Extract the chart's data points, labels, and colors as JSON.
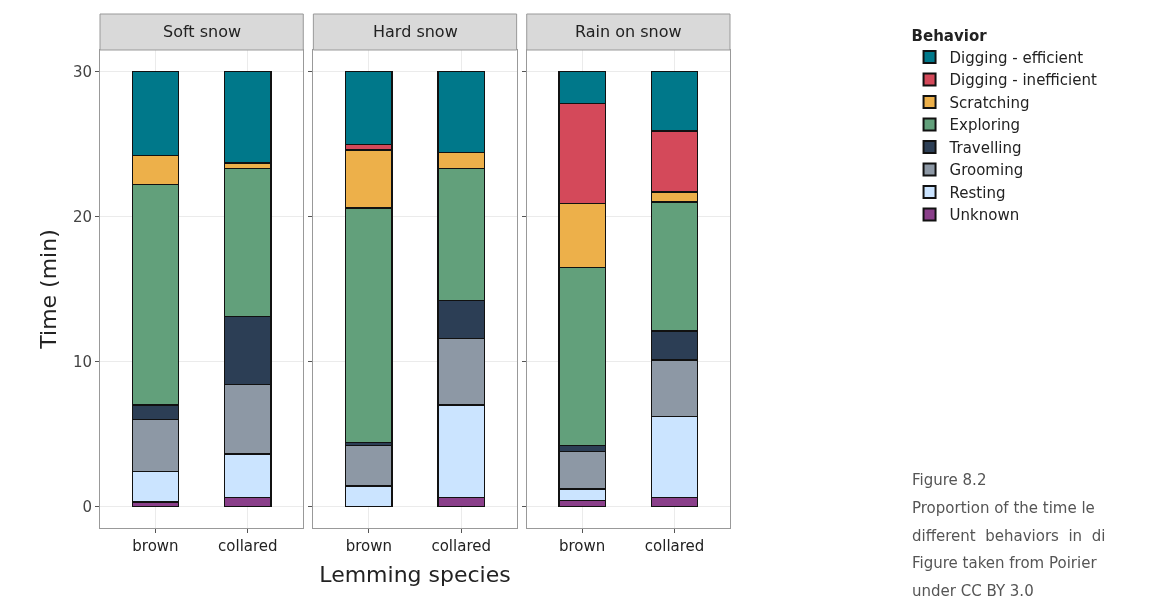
{
  "chart_data": [
    {
      "type": "bar",
      "stacked": true,
      "title": "Soft snow",
      "ylabel": "Time (min)",
      "categories": [
        "brown",
        "collared"
      ],
      "ylim": [
        -1.5,
        31.5
      ],
      "yticks": [
        0,
        10,
        20,
        30
      ],
      "grid": true,
      "series": [
        {
          "color": "#8a3f8a",
          "values": [
            0.3,
            0.6
          ]
        },
        {
          "color": "#cbe4ff",
          "values": [
            2.1,
            3.0
          ]
        },
        {
          "color": "#8d98a5",
          "values": [
            3.6,
            4.8
          ]
        },
        {
          "color": "#2c3e55",
          "values": [
            1.0,
            4.7
          ]
        },
        {
          "color": "#62a07b",
          "values": [
            15.2,
            10.2
          ]
        },
        {
          "color": "#edb04a",
          "values": [
            2.0,
            0.4
          ]
        },
        {
          "color": "#d4495a",
          "values": [
            0,
            0
          ]
        },
        {
          "color": "#00788a",
          "values": [
            5.8,
            6.3
          ]
        }
      ]
    },
    {
      "type": "bar",
      "stacked": true,
      "title": "Hard snow",
      "xlabel": "Lemming species",
      "categories": [
        "brown",
        "collared"
      ],
      "ylim": [
        -1.5,
        31.5
      ],
      "yticks": [
        0,
        10,
        20,
        30
      ],
      "grid": true,
      "tick_labels": "x",
      "series": [
        {
          "color": "#8a3f8a",
          "values": [
            0,
            0.6
          ]
        },
        {
          "color": "#cbe4ff",
          "values": [
            1.4,
            6.4
          ]
        },
        {
          "color": "#8d98a5",
          "values": [
            2.8,
            4.6
          ]
        },
        {
          "color": "#2c3e55",
          "values": [
            0.2,
            2.6
          ]
        },
        {
          "color": "#62a07b",
          "values": [
            16.2,
            9.1
          ]
        },
        {
          "color": "#edb04a",
          "values": [
            4.0,
            1.1
          ]
        },
        {
          "color": "#d4495a",
          "values": [
            0.4,
            0
          ]
        },
        {
          "color": "#00788a",
          "values": [
            5.0,
            5.6
          ]
        }
      ]
    },
    {
      "type": "bar",
      "stacked": true,
      "title": "Rain on snow",
      "categories": [
        "brown",
        "collared"
      ],
      "ylim": [
        -1.5,
        31.5
      ],
      "yticks": [
        0,
        10,
        20,
        30
      ],
      "grid": true,
      "legend": "right",
      "legend_title": "Behavior",
      "tick_labels": "x",
      "annotations": [
        "Figure 8.2",
        "Proportion of the time le",
        "different  behaviors  in  di",
        "Figure taken from Poirier",
        "under CC BY 3.0"
      ],
      "series": [
        {
          "name": "Unknown",
          "color": "#8a3f8a",
          "values": [
            0.4,
            0.6
          ]
        },
        {
          "name": "Resting",
          "color": "#cbe4ff",
          "values": [
            0.8,
            5.6
          ]
        },
        {
          "name": "Grooming",
          "color": "#8d98a5",
          "values": [
            2.6,
            3.9
          ]
        },
        {
          "name": "Travelling",
          "color": "#2c3e55",
          "values": [
            0.4,
            2.0
          ]
        },
        {
          "name": "Exploring",
          "color": "#62a07b",
          "values": [
            12.3,
            8.9
          ]
        },
        {
          "name": "Scratching",
          "color": "#edb04a",
          "values": [
            4.4,
            0.7
          ]
        },
        {
          "name": "Digging - inefficient",
          "color": "#d4495a",
          "values": [
            6.9,
            4.2
          ]
        },
        {
          "name": "Digging - efficient",
          "color": "#00788a",
          "values": [
            2.2,
            4.1
          ]
        }
      ]
    }
  ]
}
